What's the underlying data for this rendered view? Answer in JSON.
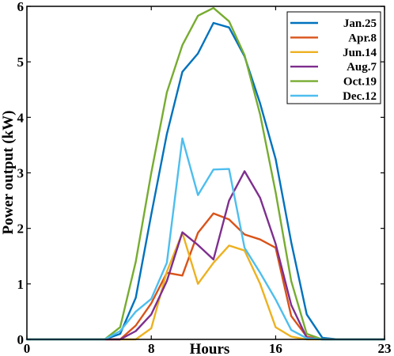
{
  "chart_data": {
    "type": "line",
    "xlabel": "Hours",
    "ylabel": "Power output (kW)",
    "xlim": [
      0,
      23
    ],
    "ylim": [
      0,
      6
    ],
    "xticks": [
      0,
      8,
      16,
      23
    ],
    "yticks": [
      0,
      1,
      2,
      3,
      4,
      5,
      6
    ],
    "legend_position": "top-right",
    "x": [
      0,
      1,
      2,
      3,
      4,
      5,
      6,
      7,
      8,
      9,
      10,
      11,
      12,
      13,
      14,
      15,
      16,
      17,
      18,
      19,
      20,
      21,
      22,
      23
    ],
    "series": [
      {
        "name": "Jan.25",
        "color": "#0072BD",
        "values": [
          0,
          0,
          0,
          0,
          0,
          0,
          0.1,
          0.75,
          2.25,
          3.7,
          4.82,
          5.15,
          5.7,
          5.62,
          5.1,
          4.25,
          3.25,
          1.75,
          0.45,
          0.03,
          0,
          0,
          0,
          0
        ]
      },
      {
        "name": "Apr.8",
        "color": "#D95319",
        "values": [
          0,
          0,
          0,
          0,
          0,
          0,
          0,
          0.25,
          0.65,
          1.2,
          1.15,
          1.92,
          2.27,
          2.16,
          1.89,
          1.8,
          1.65,
          0.42,
          0.05,
          0,
          0,
          0,
          0,
          0
        ]
      },
      {
        "name": "Jun.14",
        "color": "#EDB120",
        "values": [
          0,
          0,
          0,
          0,
          0,
          0,
          0,
          0,
          0.2,
          1.22,
          1.92,
          1.0,
          1.38,
          1.69,
          1.6,
          1.0,
          0.22,
          0.05,
          0,
          0,
          0,
          0,
          0,
          0
        ]
      },
      {
        "name": "Aug.7",
        "color": "#7E2F8E",
        "values": [
          0,
          0,
          0,
          0,
          0,
          0,
          0,
          0.15,
          0.45,
          1.05,
          1.93,
          1.7,
          1.44,
          2.5,
          3.03,
          2.55,
          1.72,
          0.62,
          0.03,
          0,
          0,
          0,
          0,
          0
        ]
      },
      {
        "name": "Oct.19",
        "color": "#77AC30",
        "values": [
          0,
          0,
          0,
          0,
          0,
          0,
          0.22,
          1.4,
          3.0,
          4.45,
          5.3,
          5.83,
          5.97,
          5.73,
          5.12,
          4.05,
          2.65,
          1.05,
          0.1,
          0,
          0,
          0,
          0,
          0
        ]
      },
      {
        "name": "Dec.12",
        "color": "#4DBEEE",
        "values": [
          0,
          0,
          0,
          0,
          0,
          0,
          0.15,
          0.5,
          0.73,
          1.38,
          3.62,
          2.6,
          3.06,
          3.07,
          1.65,
          1.2,
          0.72,
          0.17,
          0.02,
          0,
          0,
          0,
          0,
          0
        ]
      }
    ]
  }
}
